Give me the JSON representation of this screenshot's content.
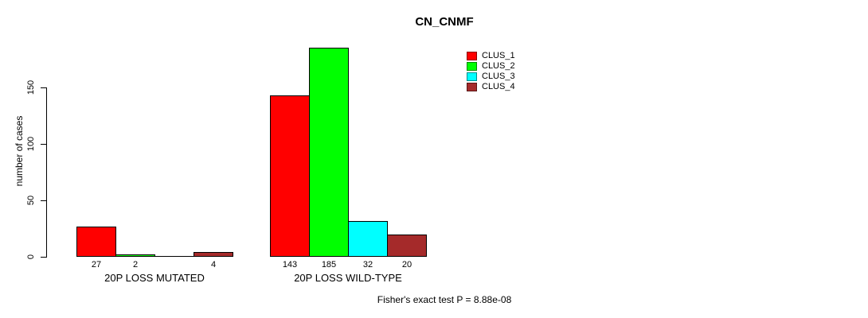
{
  "chart_data": {
    "type": "bar",
    "title": "CN_CNMF",
    "ylabel": "number of cases",
    "xlabel": "",
    "ylim": [
      0,
      185
    ],
    "yticks": [
      0,
      50,
      100,
      150
    ],
    "grid": false,
    "legend_position": "top-right",
    "series": [
      {
        "name": "CLUS_1",
        "color": "#FF0000"
      },
      {
        "name": "CLUS_2",
        "color": "#00FF00"
      },
      {
        "name": "CLUS_3",
        "color": "#00FFFF"
      },
      {
        "name": "CLUS_4",
        "color": "#A52A2A"
      }
    ],
    "categories": [
      "20P LOSS MUTATED",
      "20P LOSS WILD-TYPE"
    ],
    "groups": [
      {
        "label": "20P LOSS MUTATED",
        "values": [
          27,
          2,
          0,
          4
        ],
        "value_labels": [
          "27",
          "2",
          "",
          "4"
        ]
      },
      {
        "label": "20P LOSS WILD-TYPE",
        "values": [
          143,
          185,
          32,
          20
        ],
        "value_labels": [
          "143",
          "185",
          "32",
          "20"
        ]
      }
    ],
    "annotation": "Fisher's exact test P = 8.88e-08"
  }
}
